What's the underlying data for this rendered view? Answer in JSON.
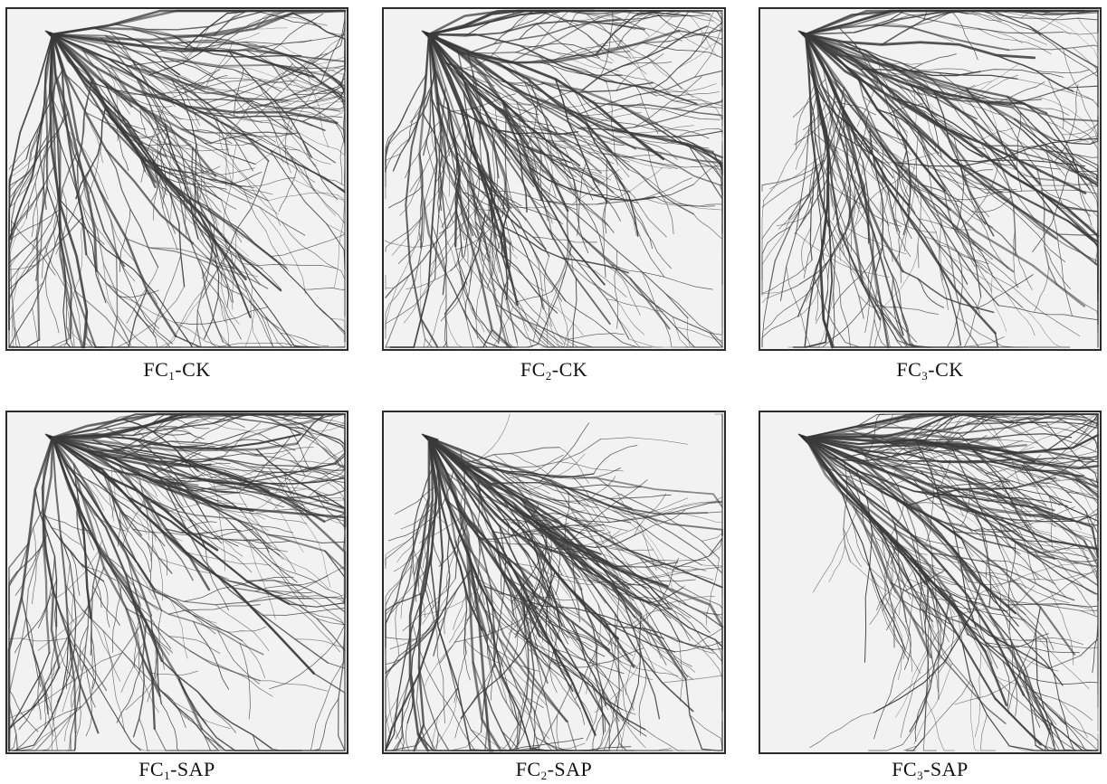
{
  "panels": [
    {
      "prefix": "FC",
      "sub": "1",
      "suffix": "-CK"
    },
    {
      "prefix": "FC",
      "sub": "2",
      "suffix": "-CK"
    },
    {
      "prefix": "FC",
      "sub": "3",
      "suffix": "-CK"
    },
    {
      "prefix": "FC",
      "sub": "1",
      "suffix": "-SAP"
    },
    {
      "prefix": "FC",
      "sub": "2",
      "suffix": "-SAP"
    },
    {
      "prefix": "FC",
      "sub": "3",
      "suffix": "-SAP"
    }
  ],
  "colors": {
    "background": "#ffffff",
    "scan": "#f2f2f2",
    "root": "#3a3a3a",
    "frame": "#2b2b2b"
  }
}
